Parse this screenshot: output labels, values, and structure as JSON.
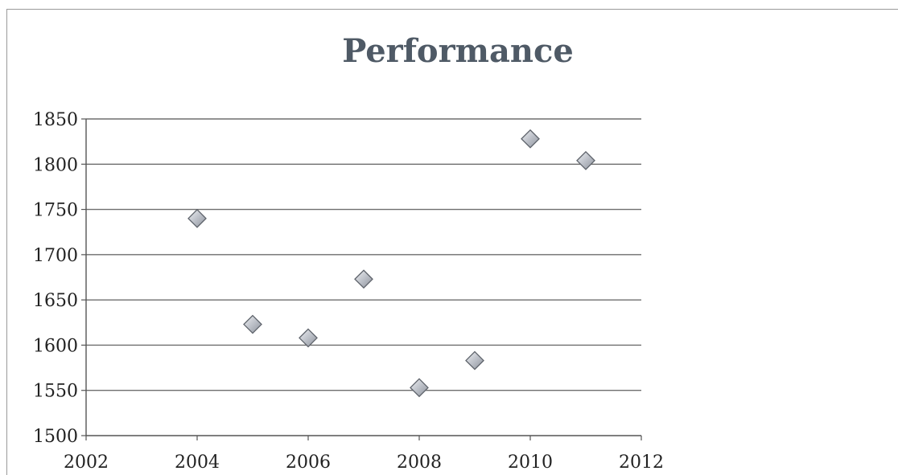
{
  "chart_data": {
    "type": "scatter",
    "title": "Performance",
    "xlabel": "",
    "ylabel": "",
    "xlim": [
      2002,
      2012
    ],
    "ylim": [
      1500,
      1850
    ],
    "x_ticks": [
      "2002",
      "2004",
      "2006",
      "2008",
      "2010",
      "2012"
    ],
    "y_ticks": [
      "1850",
      "1800",
      "1750",
      "1700",
      "1650",
      "1600",
      "1550",
      "1500"
    ],
    "grid": "horizontal",
    "legend": "none",
    "marker": "diamond",
    "marker_color": "#b8bcc4",
    "points": [
      {
        "x": 2004,
        "y": 1740
      },
      {
        "x": 2005,
        "y": 1623
      },
      {
        "x": 2006,
        "y": 1608
      },
      {
        "x": 2007,
        "y": 1673
      },
      {
        "x": 2008,
        "y": 1553
      },
      {
        "x": 2009,
        "y": 1583
      },
      {
        "x": 2010,
        "y": 1828
      },
      {
        "x": 2011,
        "y": 1804
      }
    ]
  }
}
